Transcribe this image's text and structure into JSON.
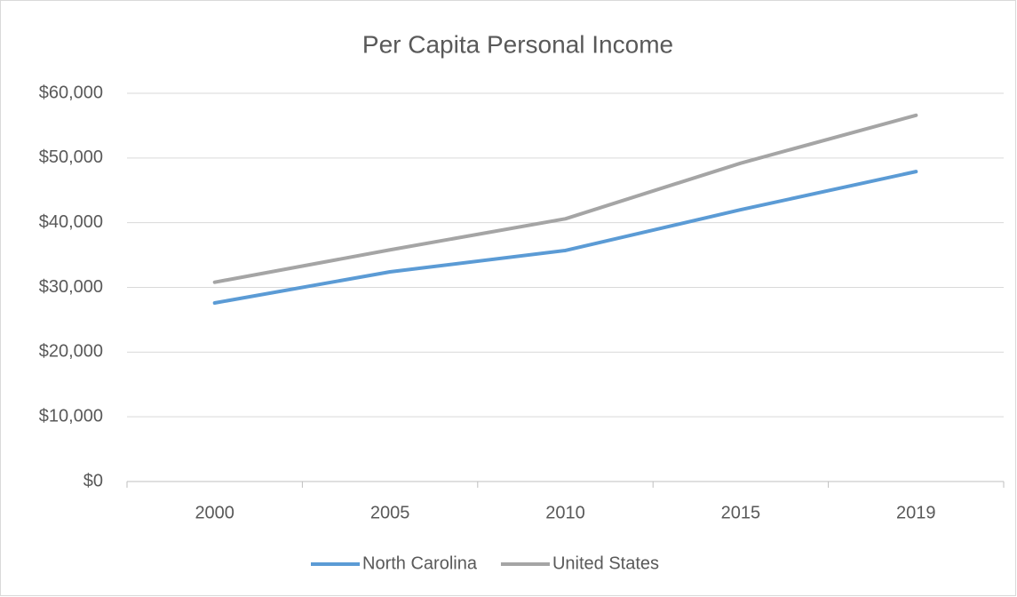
{
  "chart_data": {
    "type": "line",
    "title": "Per Capita Personal Income",
    "categories": [
      "2000",
      "2005",
      "2010",
      "2015",
      "2019"
    ],
    "series": [
      {
        "name": "North Carolina",
        "color": "#5b9bd5",
        "values": [
          27600,
          32400,
          35700,
          42000,
          47900
        ]
      },
      {
        "name": "United States",
        "color": "#a5a5a5",
        "values": [
          30800,
          35800,
          40600,
          49200,
          56600
        ]
      }
    ],
    "ylim": [
      0,
      60000
    ],
    "yticks": [
      {
        "value": 0,
        "label": "$0"
      },
      {
        "value": 10000,
        "label": "$10,000"
      },
      {
        "value": 20000,
        "label": "$20,000"
      },
      {
        "value": 30000,
        "label": "$30,000"
      },
      {
        "value": 40000,
        "label": "$40,000"
      },
      {
        "value": 50000,
        "label": "$50,000"
      },
      {
        "value": 60000,
        "label": "$60,000"
      }
    ],
    "grid": true,
    "legend": "bottom"
  }
}
